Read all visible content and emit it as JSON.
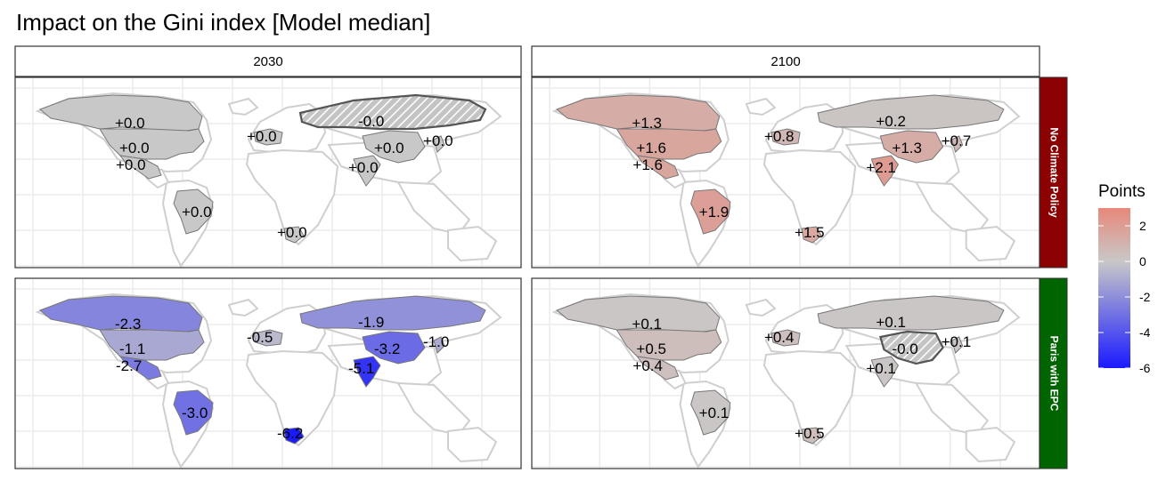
{
  "chart_data": {
    "type": "choropleth-map",
    "title": "Impact on the Gini index [Model median]",
    "columns": [
      "2030",
      "2100"
    ],
    "rows": [
      {
        "label": "No Climate Policy",
        "color": "#8b0000"
      },
      {
        "label": "Paris with EPC",
        "color": "#006400"
      }
    ],
    "legend": {
      "title": "Points",
      "ticks": [
        "2",
        "0",
        "-2",
        "-4",
        "-6"
      ],
      "range": [
        -6,
        3
      ],
      "colors": {
        "high": "#e8887a",
        "mid": "#c8c8c8",
        "low": "#1a1aff"
      }
    },
    "regions": [
      "Canada",
      "USA",
      "Mexico",
      "Brazil",
      "Europe",
      "South Africa",
      "Russia",
      "China",
      "India",
      "Japan"
    ],
    "panels": [
      {
        "row": 0,
        "col": 0,
        "values": {
          "Canada": {
            "value": 0.0,
            "text": "+0.0"
          },
          "USA": {
            "value": 0.0,
            "text": "+0.0"
          },
          "Mexico": {
            "value": 0.0,
            "text": "+0.0"
          },
          "Brazil": {
            "value": 0.0,
            "text": "+0.0"
          },
          "Europe": {
            "value": 0.0,
            "text": "+0.0"
          },
          "South Africa": {
            "value": 0.0,
            "text": "+0.0"
          },
          "Russia": {
            "value": 0.0,
            "text": "-0.0",
            "hatched": true
          },
          "China": {
            "value": 0.0,
            "text": "+0.0"
          },
          "India": {
            "value": 0.0,
            "text": "+0.0"
          },
          "Japan": {
            "value": 0.0,
            "text": "+0.0"
          }
        }
      },
      {
        "row": 0,
        "col": 1,
        "values": {
          "Canada": {
            "value": 1.3,
            "text": "+1.3"
          },
          "USA": {
            "value": 1.6,
            "text": "+1.6"
          },
          "Mexico": {
            "value": 1.6,
            "text": "+1.6"
          },
          "Brazil": {
            "value": 1.9,
            "text": "+1.9"
          },
          "Europe": {
            "value": 0.8,
            "text": "+0.8"
          },
          "South Africa": {
            "value": 1.5,
            "text": "+1.5"
          },
          "Russia": {
            "value": 0.2,
            "text": "+0.2"
          },
          "China": {
            "value": 1.3,
            "text": "+1.3"
          },
          "India": {
            "value": 2.1,
            "text": "+2.1"
          },
          "Japan": {
            "value": 0.7,
            "text": "+0.7"
          }
        }
      },
      {
        "row": 1,
        "col": 0,
        "values": {
          "Canada": {
            "value": -2.3,
            "text": "-2.3"
          },
          "USA": {
            "value": -1.1,
            "text": "-1.1"
          },
          "Mexico": {
            "value": -2.7,
            "text": "-2.7"
          },
          "Brazil": {
            "value": -3.0,
            "text": "-3.0"
          },
          "Europe": {
            "value": -0.5,
            "text": "-0.5"
          },
          "South Africa": {
            "value": -6.2,
            "text": "-6.2"
          },
          "Russia": {
            "value": -1.9,
            "text": "-1.9"
          },
          "China": {
            "value": -3.2,
            "text": "-3.2"
          },
          "India": {
            "value": -5.1,
            "text": "-5.1"
          },
          "Japan": {
            "value": -1.0,
            "text": "-1.0"
          }
        }
      },
      {
        "row": 1,
        "col": 1,
        "values": {
          "Canada": {
            "value": 0.1,
            "text": "+0.1"
          },
          "USA": {
            "value": 0.5,
            "text": "+0.5"
          },
          "Mexico": {
            "value": 0.4,
            "text": "+0.4"
          },
          "Brazil": {
            "value": 0.1,
            "text": "+0.1"
          },
          "Europe": {
            "value": 0.4,
            "text": "+0.4"
          },
          "South Africa": {
            "value": 0.5,
            "text": "+0.5"
          },
          "Russia": {
            "value": 0.1,
            "text": "+0.1"
          },
          "China": {
            "value": 0.0,
            "text": "-0.0",
            "hatched": true
          },
          "India": {
            "value": 0.1,
            "text": "+0.1"
          },
          "Japan": {
            "value": 0.1,
            "text": "+0.1"
          }
        }
      }
    ]
  }
}
